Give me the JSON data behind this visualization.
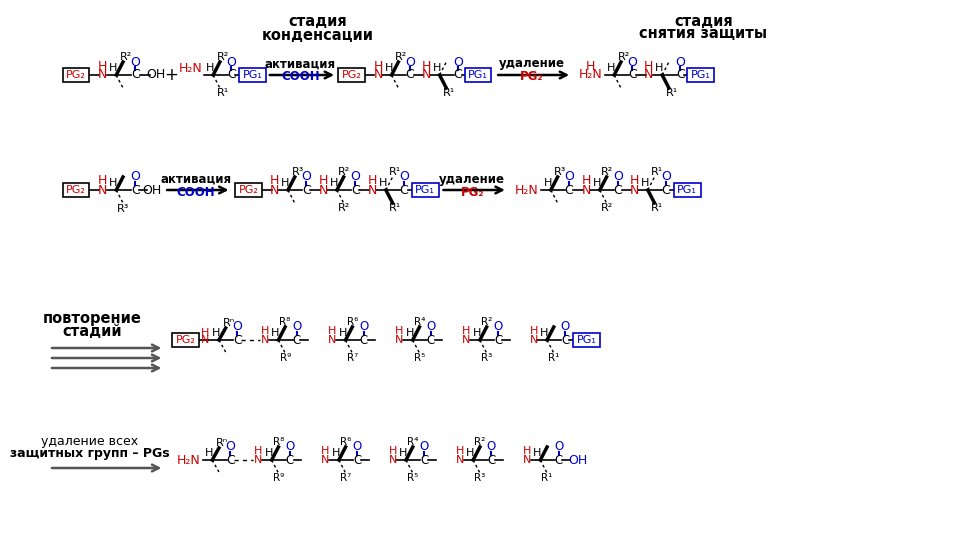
{
  "bg_color": "#ffffff",
  "red": "#cc0000",
  "blue": "#0000cc",
  "black": "#000000",
  "gray": "#555555",
  "title1": "стадия\nконденсации",
  "title2": "стадия\nснятия защиты",
  "label_activation": "активация",
  "label_COOH": "COOH",
  "label_removal": "удаление",
  "label_PG2_red": "PG₂",
  "label_PG1_blue": "PG₁",
  "label_repeat": "повторение\nстадий",
  "label_remove_all": "удаление всех\nзащитных групп – PGs"
}
